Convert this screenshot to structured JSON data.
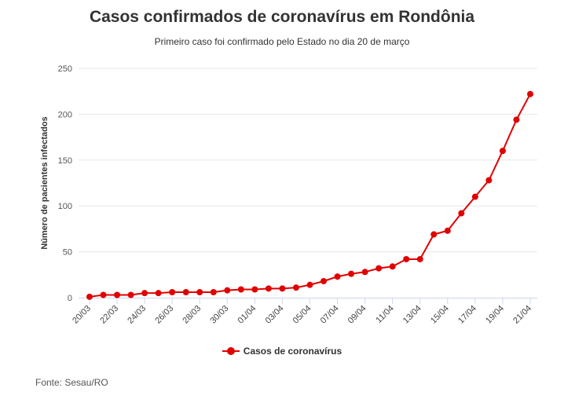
{
  "chart_data": {
    "type": "line",
    "title": "Casos confirmados de coronavírus em Rondônia",
    "subtitle": "Primeiro caso foi confirmado pelo Estado no dia 20 de março",
    "ylabel": "Número de pacientes infectados",
    "xlabel": "",
    "ylim": [
      0,
      250
    ],
    "yticks": [
      0,
      50,
      100,
      150,
      200,
      250
    ],
    "grid": true,
    "legend_position": "bottom-center",
    "x": [
      "20/03",
      "21/03",
      "22/03",
      "23/03",
      "24/03",
      "25/03",
      "26/03",
      "27/03",
      "28/03",
      "29/03",
      "30/03",
      "31/03",
      "01/04",
      "02/04",
      "03/04",
      "04/04",
      "05/04",
      "06/04",
      "07/04",
      "08/04",
      "09/04",
      "10/04",
      "11/04",
      "12/04",
      "13/04",
      "14/04",
      "15/04",
      "16/04",
      "17/04",
      "18/04",
      "19/04",
      "20/04",
      "21/04"
    ],
    "xtick_labels": [
      "20/03",
      "22/03",
      "24/03",
      "26/03",
      "28/03",
      "30/03",
      "01/04",
      "03/04",
      "05/04",
      "07/04",
      "09/04",
      "11/04",
      "13/04",
      "15/04",
      "17/04",
      "19/04",
      "21/04"
    ],
    "series": [
      {
        "name": "Casos de coronavírus",
        "color": "#e00000",
        "values": [
          1,
          3,
          3,
          3,
          5,
          5,
          6,
          6,
          6,
          6,
          8,
          9,
          9,
          10,
          10,
          11,
          14,
          18,
          23,
          26,
          28,
          32,
          34,
          42,
          42,
          69,
          73,
          92,
          110,
          128,
          160,
          194,
          222
        ]
      }
    ]
  },
  "source": "Fonte: Sesau/RO"
}
